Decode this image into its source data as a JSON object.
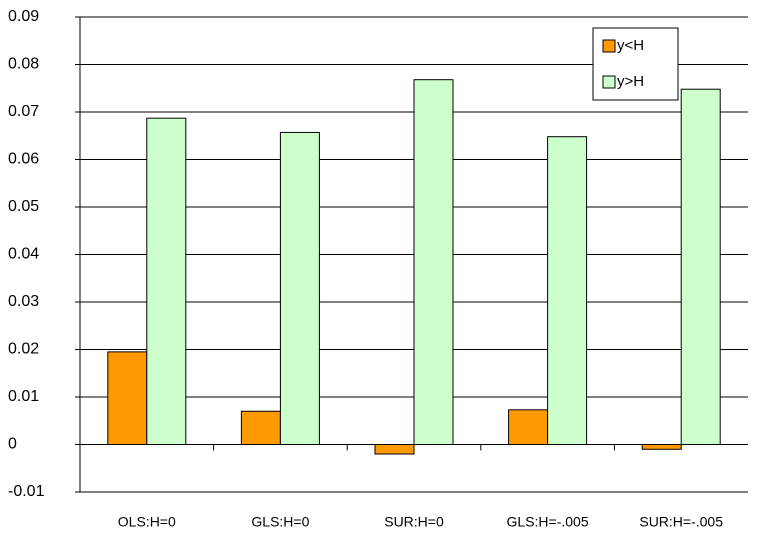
{
  "chart_data": {
    "type": "bar",
    "categories": [
      "OLS:H=0",
      "GLS:H=0",
      "SUR:H=0",
      "GLS:H=-.005",
      "SUR:H=-.005"
    ],
    "series": [
      {
        "name": "y<H",
        "color": "#ff9900",
        "values": [
          0.0195,
          0.007,
          -0.002,
          0.0073,
          -0.001
        ]
      },
      {
        "name": "y>H",
        "color": "#ccffcc",
        "values": [
          0.0687,
          0.0657,
          0.0768,
          0.0648,
          0.0748
        ]
      }
    ],
    "ylim": [
      -0.01,
      0.09
    ],
    "yticks": [
      -0.01,
      0,
      0.01,
      0.02,
      0.03,
      0.04,
      0.05,
      0.06,
      0.07,
      0.08,
      0.09
    ],
    "grid": true,
    "legend": "top-right"
  }
}
